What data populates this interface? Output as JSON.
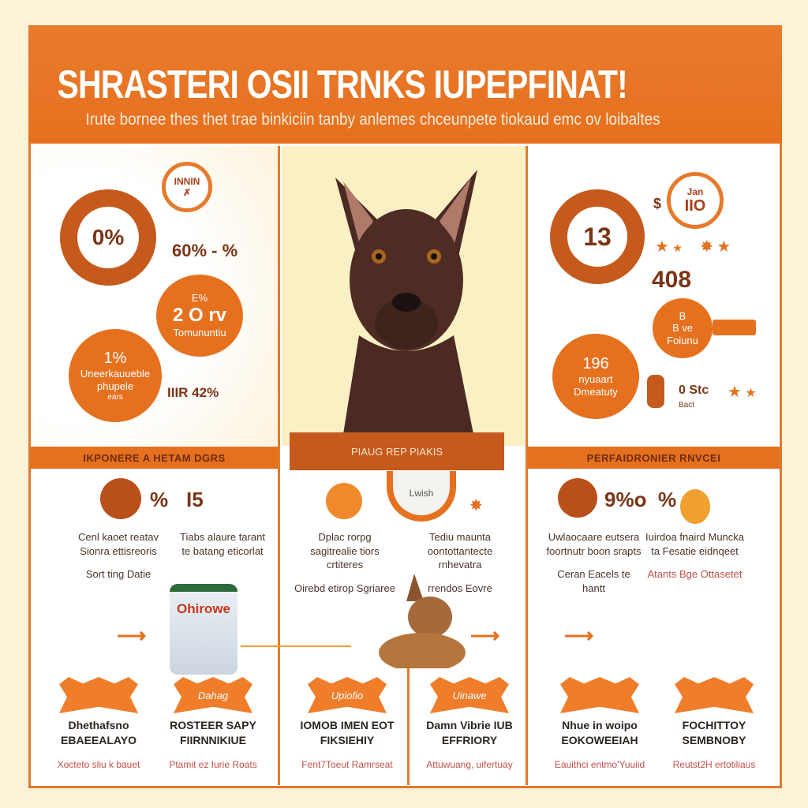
{
  "header": {
    "title": "SHRASTERI OSII TRNKS IUPEPFINAT!",
    "subtitle": "Irute bornee thes thet trae binkiciin tanby anlemes chceunpete tiokaud emc ov loibaltes"
  },
  "left_panel": {
    "small_ring_label": "INNIN",
    "ring_value": "0%",
    "stat_text": "60% - %",
    "bubble1": {
      "top": "E%",
      "value": "2 O rv",
      "label": "Tomununtiu"
    },
    "bubble2": {
      "value": "1%",
      "line1": "Uneerkauueble",
      "line2": "phupele",
      "line3": "ears"
    },
    "bar_stat": "IIIR 42%"
  },
  "right_panel": {
    "small_ring_top": "Jan",
    "small_ring_value": "IIO",
    "ring_value": "13",
    "stat_text": "408",
    "bubble1": {
      "top": "B",
      "value": "B ve",
      "label": "Foiunu"
    },
    "bubble2": {
      "value": "196",
      "line1": "nyuaart",
      "line2": "Dmeatuty"
    },
    "side_stat": "0 Stc",
    "side_sub": "Bact"
  },
  "sections": {
    "left": "IKPONERE A HETAM DGRS",
    "middle": "PIAUG REP PIAKIS",
    "right": "PERFAIDRONIER RNVCEI"
  },
  "mid_panel": {
    "gauge_label": "Lwish"
  },
  "stats_row": {
    "left_pcts": [
      "%",
      "I5"
    ],
    "right_pcts": [
      "9%o",
      "%"
    ]
  },
  "text_blocks": [
    {
      "main": "Cenl kaoet reatav Sionra ettisreoris",
      "sub": "Sort ting Datie"
    },
    {
      "main": "Tiabs alaure tarant te batang eticorlat",
      "sub": ""
    },
    {
      "main": "Dplac rorpg sagitrealie tiors crtiteres",
      "sub": "Oirebd etirop Sgriaree"
    },
    {
      "main": "Tediu maunta oontottantecte rnhevatra",
      "sub": "rrendos Eovre"
    },
    {
      "main": "Uwlaocaare eutsera foortnutr boon srapts",
      "sub": "Ceran Eacels te hantt"
    },
    {
      "main": "Iuirdoa fnaird Muncka ta Fesatie eidnqeet",
      "sub": "Atants Bge Ottasetet"
    }
  ],
  "can_label": "Ohirowe",
  "badges": [
    "",
    "Dahag",
    "Upiofio",
    "Uinawe",
    "",
    ""
  ],
  "bottom_items": [
    {
      "title": "Dhethafsno EBAEEALAYO",
      "sub": "Xocteto sliu k bauet"
    },
    {
      "title": "ROSTEER SAPY FIIRNNIKIUE",
      "sub": "Ptamit ez Iurie Roats"
    },
    {
      "title": "IOMOB IMEN EOT FIKSIEHIY",
      "sub": "Fent7Toeut Ramrseat"
    },
    {
      "title": "Damn Vibrie IUB EFFRIORY",
      "sub": "Attuwuang, uifertuay"
    },
    {
      "title": "Nhue in woipo EOKOWEEIAH",
      "sub": "Eauithci entmo'Yuuiid"
    },
    {
      "title": "FOCHITTOY SEMBNOBY",
      "sub": "Reutst2H ertotiliaus"
    }
  ],
  "colors": {
    "orange": "#e5711f",
    "dark_orange": "#c65a1c",
    "brown": "#7a3517",
    "cream": "#fbf3d8"
  }
}
